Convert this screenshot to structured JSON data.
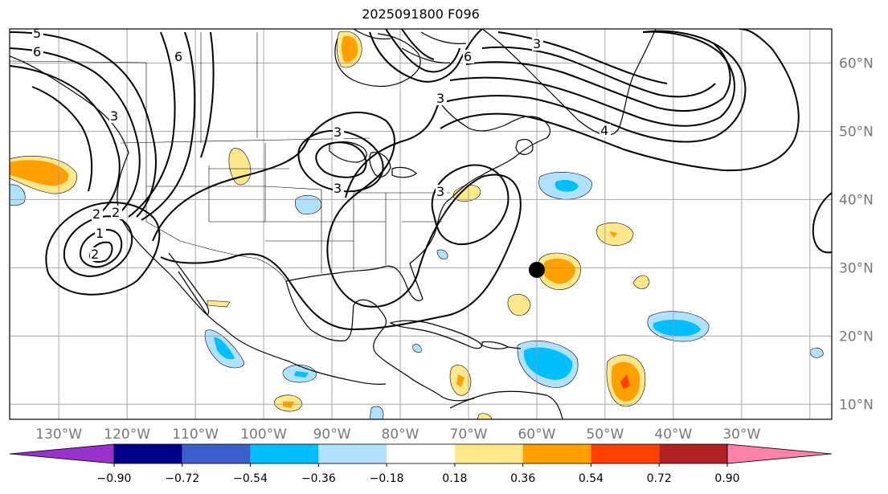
{
  "title": "2025091800 F096",
  "lat_labels": [
    {
      "lat": 60,
      "text": "60°N"
    },
    {
      "lat": 50,
      "text": "50°N"
    },
    {
      "lat": 40,
      "text": "40°N"
    },
    {
      "lat": 30,
      "text": "30°N"
    },
    {
      "lat": 20,
      "text": "20°N"
    },
    {
      "lat": 10,
      "text": "10°N"
    }
  ],
  "lon_labels": [
    {
      "lon": -130,
      "text": "130°W"
    },
    {
      "lon": -120,
      "text": "120°W"
    },
    {
      "lon": -110,
      "text": "110°W"
    },
    {
      "lon": -100,
      "text": "100°W"
    },
    {
      "lon": -90,
      "text": "90°W"
    },
    {
      "lon": -80,
      "text": "80°W"
    },
    {
      "lon": -70,
      "text": "70°W"
    },
    {
      "lon": -60,
      "text": "60°W"
    },
    {
      "lon": -50,
      "text": "50°W"
    },
    {
      "lon": -40,
      "text": "40°W"
    },
    {
      "lon": -30,
      "text": "30°W"
    }
  ],
  "colorbar": {
    "colors": [
      "#9932cc",
      "#00008b",
      "#3a5fcd",
      "#00bfff",
      "#b0e2ff",
      "#ffffff",
      "#ffe88c",
      "#ffa000",
      "#ff4000",
      "#b22222",
      "#ff82ab"
    ],
    "tick_labels": [
      "−0.90",
      "−0.72",
      "−0.54",
      "−0.36",
      "−0.18",
      "0.18",
      "0.36",
      "0.54",
      "0.72",
      "0.90"
    ]
  },
  "contour_labels": [
    "5",
    "6",
    "6",
    "6",
    "3",
    "3",
    "3",
    "3",
    "2",
    "2",
    "1",
    "2",
    "3",
    "4",
    "3"
  ],
  "marker": {
    "lon": -60,
    "lat": 29.7,
    "color": "#000000"
  },
  "shading_colors": {
    "light_yellow": "#ffe88c",
    "orange": "#ffa000",
    "red_orange": "#ff4000",
    "light_blue": "#b0e2ff",
    "deep_sky_blue": "#00bfff"
  }
}
